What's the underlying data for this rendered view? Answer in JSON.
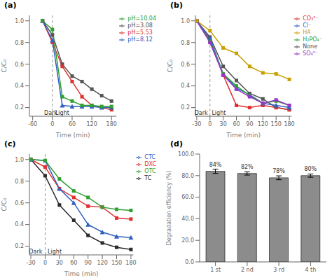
{
  "chart_data": [
    {
      "type": "line",
      "title": "(a)",
      "x_label": "Time (min)",
      "y_label": "C/C₀",
      "xlim": [
        -70,
        195
      ],
      "ylim": [
        0.12,
        1.05
      ],
      "xticks": [
        -60,
        0,
        60,
        120,
        180
      ],
      "yticks": [
        0.2,
        0.4,
        0.6,
        0.8,
        {
          "value": 1.0,
          "label": "1.0"
        }
      ],
      "grid": false,
      "legend": "upper right",
      "vline": 0,
      "annotations": [
        {
          "text": "Dark",
          "x": -5
        },
        {
          "text": "Light",
          "x": 30
        }
      ],
      "x": [
        -30,
        0,
        30,
        60,
        90,
        120,
        150,
        180
      ],
      "series": [
        {
          "name": "pH=3.08",
          "color": "#555555",
          "marker": "square",
          "values": [
            1.0,
            0.87,
            0.6,
            0.49,
            0.44,
            0.37,
            0.31,
            0.26
          ]
        },
        {
          "name": "pH=5.53",
          "color": "#e03030",
          "marker": "square",
          "values": [
            1.0,
            0.8,
            0.58,
            0.44,
            0.3,
            0.22,
            0.2,
            0.18
          ]
        },
        {
          "name": "pH=8.12",
          "color": "#3060c0",
          "marker": "triangle",
          "values": [
            1.0,
            0.82,
            0.22,
            0.21,
            0.21,
            0.21,
            0.2,
            0.2
          ]
        },
        {
          "name": "pH=10.04",
          "color": "#30a030",
          "marker": "square",
          "values": [
            1.0,
            0.92,
            0.3,
            0.26,
            0.22,
            0.22,
            0.21,
            0.21
          ]
        }
      ]
    },
    {
      "type": "line",
      "title": "(b)",
      "x_label": "Time (min)",
      "y_label": "C/C₀",
      "xlim": [
        -33,
        185
      ],
      "ylim": [
        0.12,
        1.05
      ],
      "xticks": [
        -30,
        0,
        30,
        60,
        90,
        120,
        150,
        180
      ],
      "yticks": [
        0.2,
        0.4,
        0.6,
        0.8,
        {
          "value": 1.0,
          "label": "1.0"
        }
      ],
      "grid": false,
      "legend": "upper right",
      "vline": 0,
      "annotations": [
        {
          "text": "Dark",
          "x": -20
        },
        {
          "text": "Light",
          "x": 20
        }
      ],
      "x": [
        -30,
        0,
        30,
        60,
        90,
        120,
        150,
        180
      ],
      "series": [
        {
          "name": "None",
          "color": "#555555",
          "marker": "square",
          "values": [
            1.0,
            0.85,
            0.58,
            0.45,
            0.33,
            0.28,
            0.2,
            0.18
          ]
        },
        {
          "name": "CO₃²⁻",
          "color": "#e03030",
          "marker": "square",
          "values": [
            1.0,
            0.82,
            0.5,
            0.22,
            0.2,
            0.22,
            0.2,
            0.18
          ]
        },
        {
          "name": "Cl⁻",
          "color": "#3060c0",
          "marker": "triangle",
          "values": [
            1.0,
            0.84,
            0.51,
            0.38,
            0.32,
            0.24,
            0.22,
            0.2
          ]
        },
        {
          "name": "H₂PO₄⁻",
          "color": "#30a030",
          "marker": "square",
          "values": [
            1.0,
            0.81,
            0.51,
            0.4,
            0.31,
            0.24,
            0.26,
            0.22
          ]
        },
        {
          "name": "SO₄²⁻",
          "color": "#9933cc",
          "marker": "square",
          "values": [
            1.0,
            0.8,
            0.5,
            0.37,
            0.3,
            0.24,
            0.27,
            0.22
          ]
        },
        {
          "name": "HA",
          "color": "#c8a000",
          "marker": "square",
          "values": [
            1.0,
            0.91,
            0.75,
            0.7,
            0.58,
            0.52,
            0.51,
            0.46
          ]
        }
      ]
    },
    {
      "type": "line",
      "title": "(c)",
      "x_label": "Time (min)",
      "y_label": "C/C₀",
      "xlim": [
        -33,
        185
      ],
      "ylim": [
        0.12,
        1.05
      ],
      "xticks": [
        -30,
        0,
        30,
        60,
        90,
        120,
        150,
        180
      ],
      "yticks": [
        0.2,
        0.4,
        0.6,
        0.8,
        {
          "value": 1.0,
          "label": "1.0"
        }
      ],
      "grid": false,
      "legend": "upper right",
      "vline": 0,
      "annotations": [
        {
          "text": "Dark",
          "x": -20
        },
        {
          "text": "Light",
          "x": 20
        }
      ],
      "x": [
        -30,
        0,
        30,
        60,
        90,
        120,
        150,
        180
      ],
      "series": [
        {
          "name": "TC",
          "color": "#2b2b2b",
          "marker": "square",
          "values": [
            1.0,
            0.85,
            0.58,
            0.44,
            0.3,
            0.23,
            0.19,
            0.17
          ]
        },
        {
          "name": "DXC",
          "color": "#e03030",
          "marker": "square",
          "values": [
            1.0,
            0.93,
            0.73,
            0.65,
            0.57,
            0.56,
            0.46,
            0.45
          ]
        },
        {
          "name": "CTC",
          "color": "#3060c0",
          "marker": "triangle",
          "values": [
            1.0,
            0.99,
            0.73,
            0.6,
            0.4,
            0.33,
            0.29,
            0.28
          ]
        },
        {
          "name": "OTC",
          "color": "#30a030",
          "marker": "square",
          "values": [
            1.0,
            0.99,
            0.82,
            0.71,
            0.65,
            0.56,
            0.54,
            0.53
          ]
        }
      ]
    },
    {
      "type": "bar",
      "title": "(d)",
      "y_label": "Degradation efficiency (%)",
      "categories": [
        "1 st",
        "2 nd",
        "3 rd",
        "4 th"
      ],
      "values": [
        84,
        82,
        78,
        80
      ],
      "errors": [
        2.0,
        1.5,
        1.8,
        1.5
      ],
      "value_labels": [
        "84%",
        "82%",
        "78%",
        "80%"
      ],
      "data_labels": true,
      "color": "#8c8c8c",
      "grid": false,
      "ylim": [
        0,
        100
      ],
      "yticks": [
        {
          "value": 0,
          "label": "0.0"
        },
        {
          "value": 20,
          "label": "20.0"
        },
        {
          "value": 40,
          "label": "40.0"
        },
        {
          "value": 60,
          "label": "60.0"
        },
        {
          "value": 80,
          "label": "80.0"
        },
        {
          "value": 100,
          "label": "100.0"
        }
      ]
    }
  ]
}
